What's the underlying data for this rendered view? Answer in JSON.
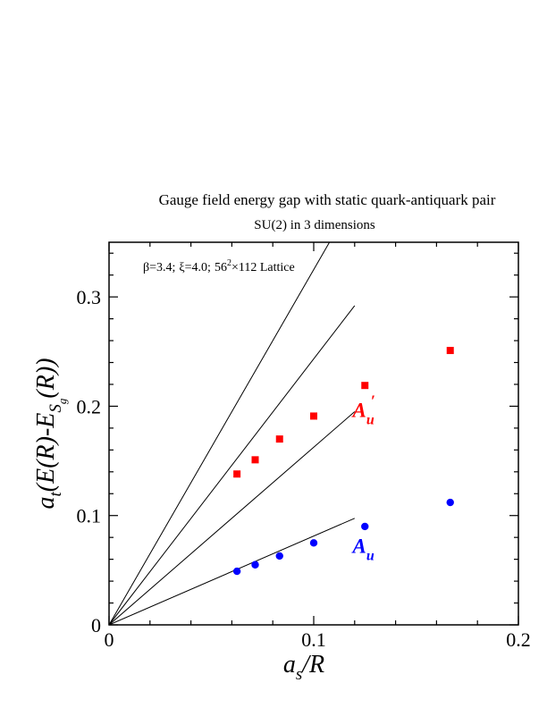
{
  "chart_data": {
    "type": "scatter",
    "title": "Gauge field energy gap with static quark-antiquark pair",
    "subtitle": "SU(2) in 3 dimensions",
    "annotation": {
      "beta": "β=3.4;",
      "xi": "ξ=4.0;",
      "lattice_base": "56",
      "lattice_exp": "2",
      "lattice_rest": "×112 Lattice"
    },
    "xlabel": {
      "main": "a",
      "sub": "s",
      "rest": "/R"
    },
    "ylabel": {
      "a": "a",
      "t": "t",
      "mid": "(E(R)-E",
      "S": "S",
      "g": "g",
      "end": "(R))"
    },
    "xlim": [
      0,
      0.2
    ],
    "ylim": [
      0,
      0.35
    ],
    "x_ticks": [
      {
        "value": 0,
        "label": "0"
      },
      {
        "value": 0.1,
        "label": "0.1"
      },
      {
        "value": 0.2,
        "label": "0.2"
      }
    ],
    "y_ticks": [
      {
        "value": 0,
        "label": "0"
      },
      {
        "value": 0.1,
        "label": "0.1"
      },
      {
        "value": 0.2,
        "label": "0.2"
      },
      {
        "value": 0.3,
        "label": "0.3"
      }
    ],
    "series": [
      {
        "label": "A",
        "label_sub": "u",
        "label_prime": "′",
        "marker": "square",
        "color": "#ff0000",
        "label_pos": [
          0.119,
          0.19
        ],
        "x": [
          0.0625,
          0.0714,
          0.0833,
          0.1,
          0.125,
          0.1667
        ],
        "y": [
          0.138,
          0.151,
          0.17,
          0.191,
          0.219,
          0.251
        ]
      },
      {
        "label": "A",
        "label_sub": "u",
        "label_prime": "",
        "marker": "circle",
        "color": "#0000ff",
        "label_pos": [
          0.119,
          0.066
        ],
        "x": [
          0.0625,
          0.0714,
          0.0833,
          0.1,
          0.125,
          0.1667
        ],
        "y": [
          0.049,
          0.055,
          0.063,
          0.075,
          0.09,
          0.112
        ]
      }
    ],
    "reference_lines": [
      {
        "x": [
          0,
          0.12
        ],
        "y": [
          0,
          0.0975
        ]
      },
      {
        "x": [
          0,
          0.12
        ],
        "y": [
          0,
          0.195
        ]
      },
      {
        "x": [
          0,
          0.12
        ],
        "y": [
          0,
          0.292
        ]
      },
      {
        "x": [
          0,
          0.12
        ],
        "y": [
          0,
          0.39
        ]
      }
    ],
    "grid": false
  }
}
